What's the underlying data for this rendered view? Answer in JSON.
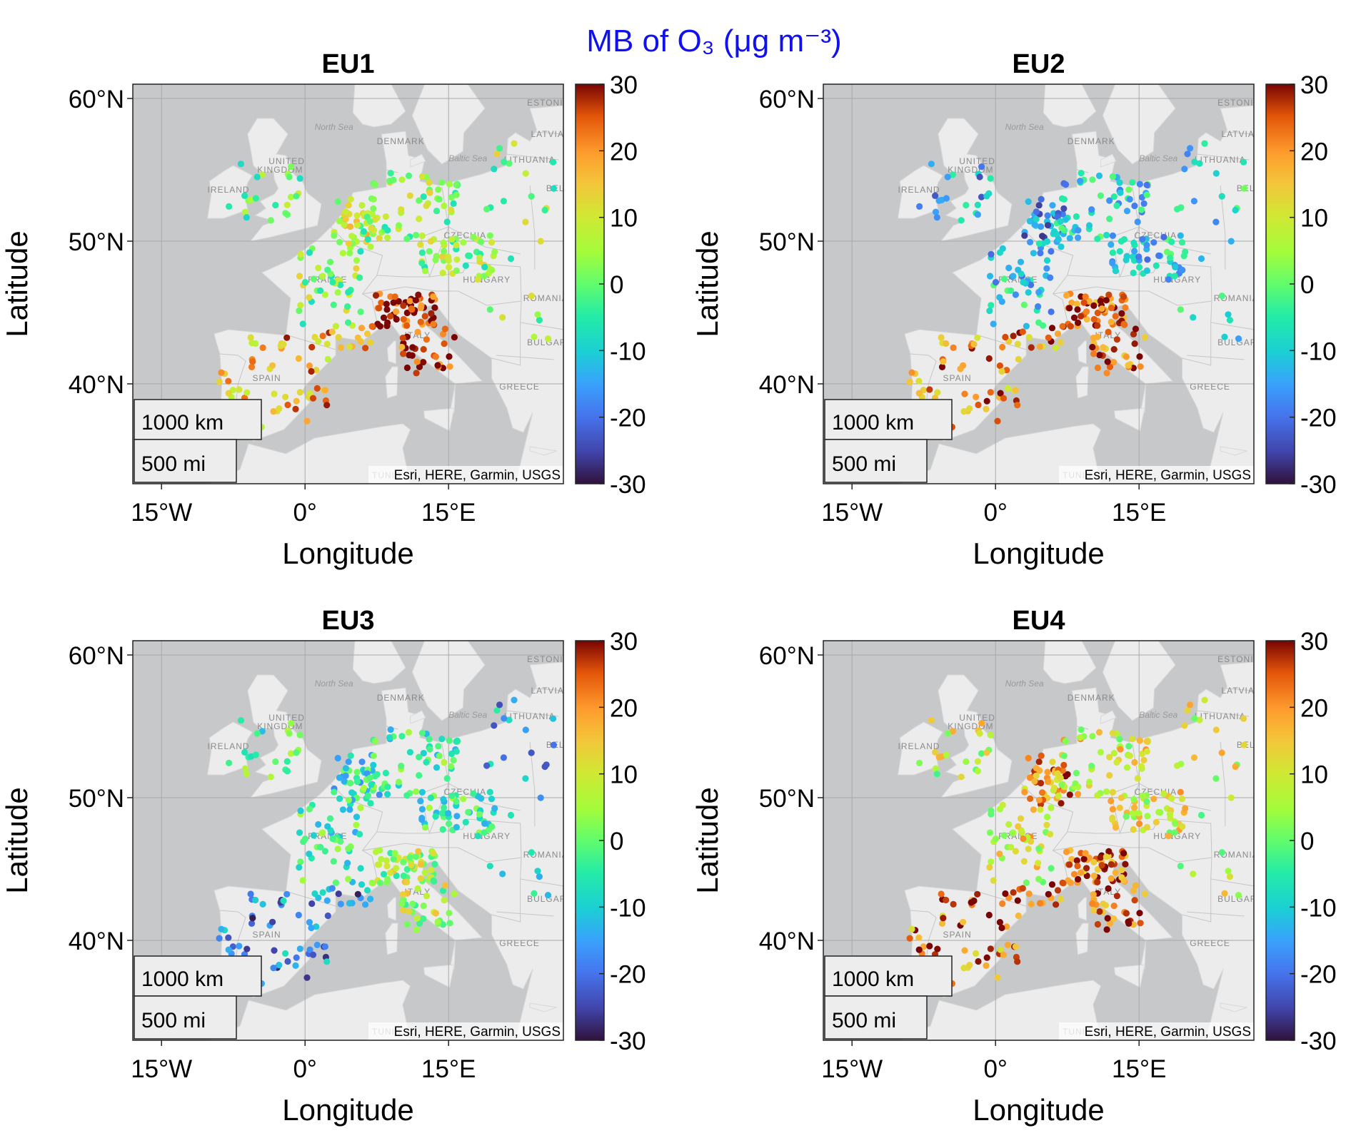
{
  "figure": {
    "title": "MB of O₃ (μg m⁻³)"
  },
  "axes": {
    "xlabel": "Longitude",
    "ylabel": "Latitude",
    "x_ticks": [
      "15°W",
      "0°",
      "15°E"
    ],
    "y_ticks": [
      "60°N",
      "50°N",
      "40°N"
    ]
  },
  "colorbar": {
    "ticks": [
      "30",
      "20",
      "10",
      "0",
      "-10",
      "-20",
      "-30"
    ],
    "range": [
      -30,
      30
    ],
    "colormap": "turbo"
  },
  "basemap": {
    "attribution": "Esri, HERE, Garmin, USGS",
    "scale_km": "1000 km",
    "scale_mi": "500 mi",
    "country_labels": [
      "UNITED",
      "KINGDOM",
      "IRELAND",
      "DENMARK",
      "FRANCE",
      "SPAIN",
      "HUNGARY",
      "ROMANIA",
      "BULGARIA",
      "GREECE",
      "LITHUANIA",
      "LATVIA",
      "ESTONIA",
      "BELA",
      "CZECHIA",
      "ITALY",
      "TUNIS"
    ],
    "sea_labels": [
      "North Sea",
      "Baltic Sea"
    ]
  },
  "panels": [
    {
      "title": "EU1"
    },
    {
      "title": "EU2"
    },
    {
      "title": "EU3"
    },
    {
      "title": "EU4"
    }
  ],
  "map_data": {
    "extent": {
      "lon": [
        -18,
        27
      ],
      "lat": [
        33,
        61
      ]
    },
    "stations_description": "Ozone monitoring stations coloured by mean bias",
    "regional_bias": {
      "EU1": {
        "uk_ireland": 0,
        "north_central": 3,
        "benelux": 8,
        "italy_po": 28,
        "iberia": 18,
        "east": 3
      },
      "EU2": {
        "uk_ireland": -14,
        "north_central": -10,
        "benelux": -16,
        "italy_po": 24,
        "iberia": 20,
        "east": -8
      },
      "EU3": {
        "uk_ireland": -3,
        "north_central": -4,
        "benelux": -8,
        "italy_po": 5,
        "iberia": -18,
        "east": -14
      },
      "EU4": {
        "uk_ireland": 8,
        "north_central": 10,
        "benelux": 20,
        "italy_po": 24,
        "iberia": 22,
        "east": 8
      }
    }
  }
}
